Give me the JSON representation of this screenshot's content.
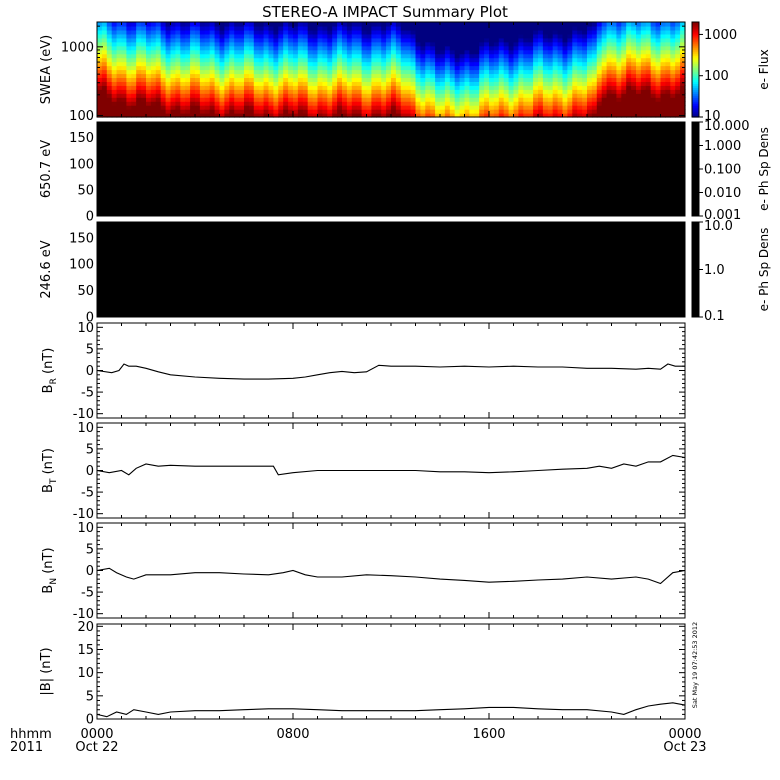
{
  "title": "STEREO-A IMPACT Summary Plot",
  "stamp": "Sat May 19 07:42:53 2012",
  "time_axis": {
    "row1_label": "hhmm",
    "row2_label": "2011",
    "ticks": [
      {
        "hours": 0,
        "time": "0000",
        "date": "Oct 22"
      },
      {
        "hours": 8,
        "time": "0800",
        "date": ""
      },
      {
        "hours": 16,
        "time": "1600",
        "date": ""
      },
      {
        "hours": 24,
        "time": "0000",
        "date": "Oct 23"
      }
    ],
    "range_hours": [
      0,
      24
    ]
  },
  "colors": {
    "line": "#000000",
    "frame": "#000000",
    "empty_panel": "#000000"
  },
  "chart_data": [
    {
      "type": "heatmap",
      "ylabel": "SWEA (eV)",
      "ylog": true,
      "ylim": [
        95,
        2300
      ],
      "yticks": [
        {
          "v": 100,
          "label": "100"
        },
        {
          "v": 1000,
          "label": "1000"
        }
      ],
      "colorbar": {
        "label": "e- Flux",
        "log": true,
        "range": [
          10,
          2000
        ],
        "ticks": [
          {
            "v": 10,
            "label": "10"
          },
          {
            "v": 100,
            "label": "100"
          },
          {
            "v": 1000,
            "label": "1000"
          }
        ]
      },
      "profile_time_hours": [
        0,
        1.5,
        4,
        8,
        12.5,
        14,
        15.5,
        17,
        20.3,
        20.6,
        24
      ],
      "profile_shift": [
        0.25,
        0.15,
        0.05,
        0.0,
        0.0,
        -0.3,
        -0.25,
        -0.15,
        -0.05,
        0.25,
        0.25
      ]
    },
    {
      "type": "heatmap",
      "ylabel": "650.7 eV",
      "ylim": [
        0,
        180
      ],
      "yticks": [
        {
          "v": 0,
          "label": "0"
        },
        {
          "v": 50,
          "label": "50"
        },
        {
          "v": 100,
          "label": "100"
        },
        {
          "v": 150,
          "label": "150"
        }
      ],
      "colorbar": {
        "label": "e- Ph Sp Dens",
        "log": true,
        "range": [
          0.001,
          10
        ],
        "ticks": [
          {
            "v": 0.001,
            "label": "0.001"
          },
          {
            "v": 0.01,
            "label": "0.010"
          },
          {
            "v": 0.1,
            "label": "0.100"
          },
          {
            "v": 1,
            "label": "1.000"
          },
          {
            "v": 10,
            "label": "10.000"
          }
        ]
      }
    },
    {
      "type": "heatmap",
      "ylabel": "246.6 eV",
      "ylim": [
        0,
        180
      ],
      "yticks": [
        {
          "v": 0,
          "label": "0"
        },
        {
          "v": 50,
          "label": "50"
        },
        {
          "v": 100,
          "label": "100"
        },
        {
          "v": 150,
          "label": "150"
        }
      ],
      "colorbar": {
        "label": "e- Ph Sp Dens",
        "log": true,
        "range": [
          0.1,
          10
        ],
        "ticks": [
          {
            "v": 0.1,
            "label": "0.1"
          },
          {
            "v": 1,
            "label": "1.0"
          },
          {
            "v": 10,
            "label": "10.0"
          }
        ]
      }
    },
    {
      "type": "line",
      "ylabel": "B",
      "ylabel_sub": "R",
      "ylabel_unit": " (nT)",
      "ylim": [
        -11,
        11
      ],
      "yticks": [
        {
          "v": -10,
          "label": "-10"
        },
        {
          "v": -5,
          "label": "-5"
        },
        {
          "v": 0,
          "label": "0"
        },
        {
          "v": 5,
          "label": "5"
        },
        {
          "v": 10,
          "label": "10"
        }
      ],
      "x": [
        0,
        0.6,
        0.9,
        1.1,
        1.3,
        1.6,
        2.0,
        2.5,
        3,
        4,
        5,
        6,
        7,
        8,
        8.5,
        9,
        9.5,
        10,
        10.5,
        11,
        11.5,
        12,
        13,
        14,
        15,
        16,
        17,
        18,
        19,
        20,
        21,
        22,
        22.5,
        23,
        23.3,
        23.6,
        24
      ],
      "y": [
        0,
        -0.5,
        0,
        1.5,
        1.0,
        1.0,
        0.5,
        -0.3,
        -1.0,
        -1.5,
        -1.8,
        -2.0,
        -2.0,
        -1.8,
        -1.5,
        -1.0,
        -0.5,
        -0.2,
        -0.5,
        -0.3,
        1.2,
        1.0,
        1.0,
        0.8,
        1.0,
        0.8,
        1.0,
        0.8,
        0.8,
        0.5,
        0.5,
        0.3,
        0.5,
        0.3,
        1.5,
        1.0,
        1.0
      ]
    },
    {
      "type": "line",
      "ylabel": "B",
      "ylabel_sub": "T",
      "ylabel_unit": " (nT)",
      "ylim": [
        -11,
        11
      ],
      "yticks": [
        {
          "v": -10,
          "label": "-10"
        },
        {
          "v": -5,
          "label": "-5"
        },
        {
          "v": 0,
          "label": "0"
        },
        {
          "v": 5,
          "label": "5"
        },
        {
          "v": 10,
          "label": "10"
        }
      ],
      "x": [
        0,
        0.5,
        1.0,
        1.3,
        1.6,
        2.0,
        2.5,
        3,
        4,
        5,
        6,
        7.2,
        7.4,
        8,
        9,
        10,
        11,
        12,
        13,
        14,
        15,
        16,
        17,
        18,
        19,
        20,
        20.5,
        21,
        21.5,
        22,
        22.5,
        23,
        23.5,
        24
      ],
      "y": [
        0,
        -0.5,
        0,
        -1.0,
        0.5,
        1.5,
        1.0,
        1.2,
        1.0,
        1.0,
        1.0,
        1.0,
        -1.0,
        -0.5,
        0,
        0,
        0,
        0,
        0,
        -0.3,
        -0.3,
        -0.5,
        -0.3,
        0,
        0.3,
        0.5,
        1.0,
        0.5,
        1.5,
        1.0,
        2.0,
        2.0,
        3.5,
        3.0
      ]
    },
    {
      "type": "line",
      "ylabel": "B",
      "ylabel_sub": "N",
      "ylabel_unit": " (nT)",
      "ylim": [
        -11,
        11
      ],
      "yticks": [
        {
          "v": -10,
          "label": "-10"
        },
        {
          "v": -5,
          "label": "-5"
        },
        {
          "v": 0,
          "label": "0"
        },
        {
          "v": 5,
          "label": "5"
        },
        {
          "v": 10,
          "label": "10"
        }
      ],
      "x": [
        0,
        0.5,
        0.8,
        1.2,
        1.5,
        2,
        3,
        4,
        5,
        6,
        7,
        7.6,
        8,
        8.5,
        9,
        10,
        11,
        12,
        13,
        14,
        15,
        16,
        17,
        18,
        19,
        20,
        21,
        22,
        22.5,
        23,
        23.5,
        24
      ],
      "y": [
        0,
        0.5,
        -0.5,
        -1.5,
        -2.0,
        -1.0,
        -1.0,
        -0.5,
        -0.5,
        -0.8,
        -1.0,
        -0.5,
        0,
        -1.0,
        -1.5,
        -1.5,
        -1.0,
        -1.2,
        -1.5,
        -2.0,
        -2.3,
        -2.7,
        -2.5,
        -2.2,
        -2.0,
        -1.5,
        -2.0,
        -1.5,
        -2.0,
        -3.0,
        -0.5,
        0
      ]
    },
    {
      "type": "line",
      "ylabel": "|B| (nT)",
      "ylim": [
        0,
        20.5
      ],
      "yticks": [
        {
          "v": 0,
          "label": "0"
        },
        {
          "v": 5,
          "label": "5"
        },
        {
          "v": 10,
          "label": "10"
        },
        {
          "v": 15,
          "label": "15"
        },
        {
          "v": 20,
          "label": "20"
        }
      ],
      "x": [
        0,
        0.4,
        0.8,
        1.2,
        1.5,
        2,
        2.5,
        3,
        4,
        5,
        6,
        7,
        8,
        9,
        10,
        11,
        12,
        13,
        14,
        15,
        16,
        17,
        18,
        19,
        20,
        21,
        21.5,
        22,
        22.5,
        23,
        23.5,
        24
      ],
      "y": [
        1.0,
        0.5,
        1.5,
        1.0,
        2.0,
        1.5,
        1.0,
        1.5,
        1.8,
        1.8,
        2.0,
        2.2,
        2.2,
        2.0,
        1.8,
        1.8,
        1.8,
        1.8,
        2.0,
        2.2,
        2.5,
        2.5,
        2.2,
        2.0,
        2.0,
        1.5,
        1.0,
        2.0,
        2.8,
        3.2,
        3.5,
        3.0
      ]
    }
  ]
}
